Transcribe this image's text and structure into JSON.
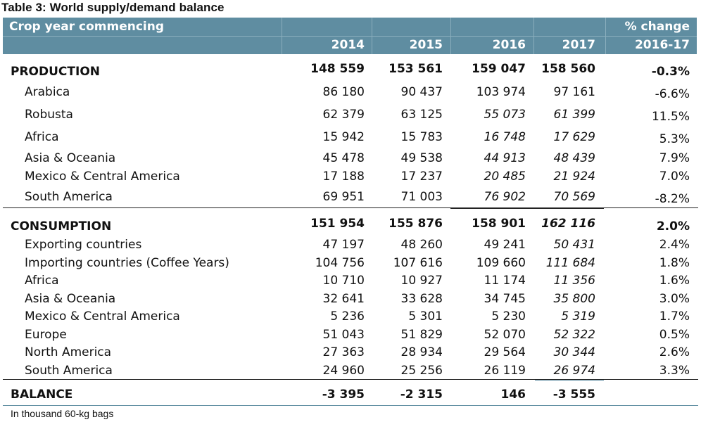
{
  "title": "Table 3:  World supply/demand balance",
  "header": {
    "label_col": "Crop year commencing",
    "years": [
      "2014",
      "2015",
      "2016",
      "2017"
    ],
    "pct_line1": "% change",
    "pct_line2": "2016-17"
  },
  "production": {
    "label": "PRODUCTION",
    "values": [
      "148 559",
      "153 561",
      "159 047",
      "158 560"
    ],
    "pct": "-0.3%",
    "rows": [
      {
        "label": "Arabica",
        "values": [
          "86 180",
          "90 437",
          "103 974",
          "97 161"
        ],
        "pct": "-6.6%"
      },
      {
        "label": "Robusta",
        "values": [
          "62 379",
          "63 125",
          "55 073",
          "61 399"
        ],
        "pct": "11.5%"
      },
      {
        "label": "Africa",
        "values": [
          "15 942",
          "15 783",
          "16 748",
          "17 629"
        ],
        "pct": "5.3%"
      },
      {
        "label": "Asia & Oceania",
        "values": [
          "45 478",
          "49 538",
          "44 913",
          "48 439"
        ],
        "pct": "7.9%"
      },
      {
        "label": "Mexico & Central America",
        "values": [
          "17 188",
          "17 237",
          "20 485",
          "21 924"
        ],
        "pct": "7.0%"
      },
      {
        "label": "South America",
        "values": [
          "69 951",
          "71 003",
          "76 902",
          "70 569"
        ],
        "pct": "-8.2%"
      }
    ]
  },
  "consumption": {
    "label": "CONSUMPTION",
    "values": [
      "151 954",
      "155 876",
      "158 901",
      "162 116"
    ],
    "pct": "2.0%",
    "rows": [
      {
        "label": "Exporting countries",
        "values": [
          "47 197",
          "48 260",
          "49 241",
          "50 431"
        ],
        "pct": "2.4%"
      },
      {
        "label": "Importing countries (Coffee Years)",
        "values": [
          "104 756",
          "107 616",
          "109 660",
          "111 684"
        ],
        "pct": "1.8%"
      },
      {
        "label": "Africa",
        "values": [
          "10 710",
          "10 927",
          "11 174",
          "11 356"
        ],
        "pct": "1.6%"
      },
      {
        "label": "Asia & Oceania",
        "values": [
          "32 641",
          "33 628",
          "34 745",
          "35 800"
        ],
        "pct": "3.0%"
      },
      {
        "label": "Mexico & Central America",
        "values": [
          "5 236",
          "5 301",
          "5 230",
          "5 319"
        ],
        "pct": "1.7%"
      },
      {
        "label": "Europe",
        "values": [
          "51 043",
          "51 829",
          "52 070",
          "52 322"
        ],
        "pct": "0.5%"
      },
      {
        "label": "North America",
        "values": [
          "27 363",
          "28 934",
          "29 564",
          "30 344"
        ],
        "pct": "2.6%"
      },
      {
        "label": "South America",
        "values": [
          "24 960",
          "25 256",
          "26 119",
          "26 974"
        ],
        "pct": "3.3%"
      }
    ]
  },
  "balance": {
    "label": "BALANCE",
    "values": [
      "-3 395",
      "-2 315",
      "146",
      "-3 555"
    ]
  },
  "footnote": "In thousand 60-kg bags",
  "colors": {
    "header_bg": "#5f8da1",
    "header_text": "#ffffff"
  }
}
